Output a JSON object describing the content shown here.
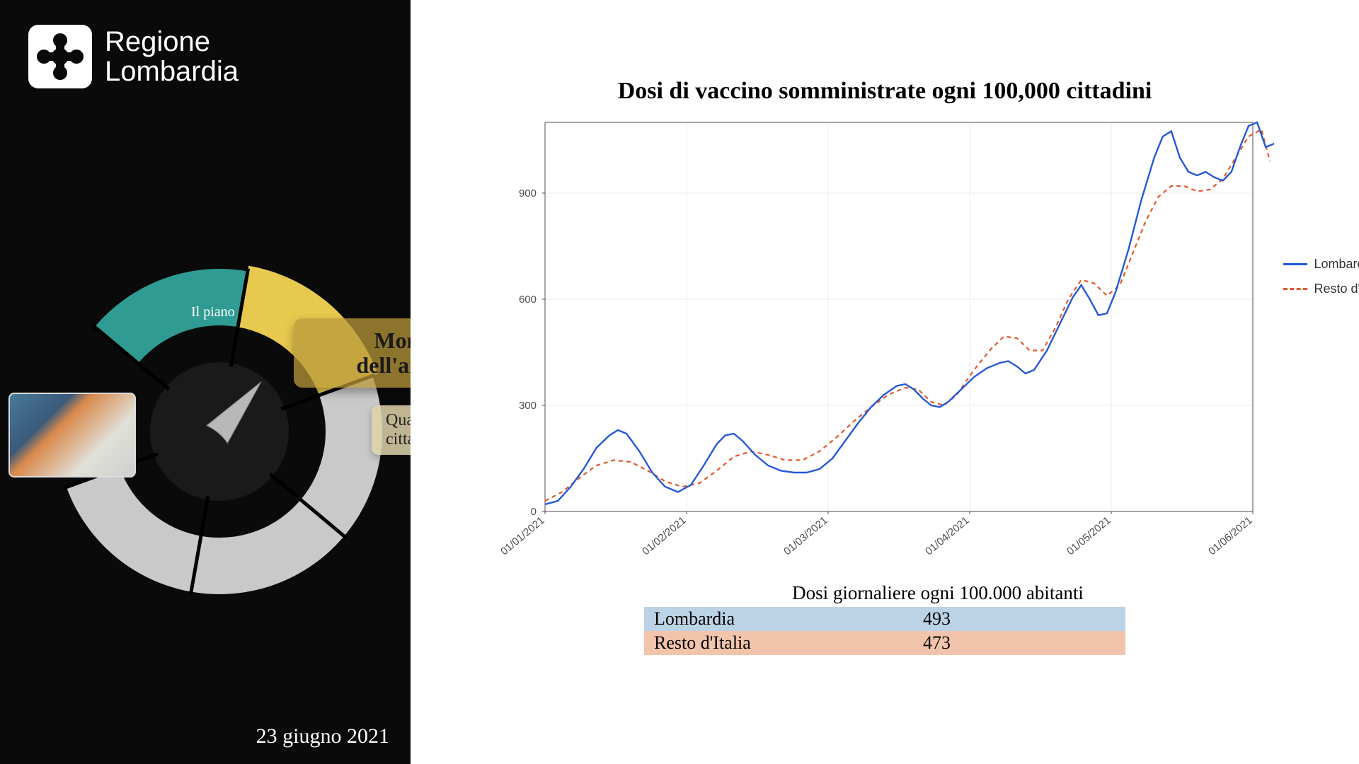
{
  "brand": {
    "line1": "Regione",
    "line2": "Lombardia"
  },
  "date_label": "23 giugno 2021",
  "wheel": {
    "segment_active_label": "Il piano",
    "callout_main_line1": "Monitoraggio",
    "callout_main_line2": "dell'andamento",
    "callout_sub": "Quanti cittadini?",
    "colors": {
      "active_segment": "#2f9b92",
      "highlight_segment": "#e8c94f",
      "inactive_segment": "#c9c9c9",
      "inner_ring": "#1a1a1a",
      "pointer": "#b8b8b8",
      "divider": "#000000"
    }
  },
  "chart": {
    "type": "line",
    "title": "Dosi di vaccino somministrate ogni 100,000 cittadini",
    "plot_background": "#ffffff",
    "panel_border": "#4d4d4d",
    "grid_color": "#ebebeb",
    "axis_text_color": "#4d4d4d",
    "axis_fontsize": 15,
    "ylim": [
      0,
      1100
    ],
    "yticks": [
      0,
      300,
      600,
      900
    ],
    "xticks": [
      "01/01/2021",
      "01/02/2021",
      "01/03/2021",
      "01/04/2021",
      "01/05/2021",
      "01/06/2021"
    ],
    "x_domain": [
      0,
      165
    ],
    "legend": [
      {
        "label": "Lombardia",
        "color": "#2559d6",
        "dash": "solid"
      },
      {
        "label": "Resto d'Italia",
        "color": "#e05a2b",
        "dash": "4 4"
      }
    ],
    "series": {
      "lombardia": {
        "color": "#2559d6",
        "width": 2.4,
        "dash": "none",
        "points": [
          [
            0,
            20
          ],
          [
            3,
            30
          ],
          [
            6,
            70
          ],
          [
            9,
            120
          ],
          [
            12,
            180
          ],
          [
            15,
            215
          ],
          [
            17,
            230
          ],
          [
            19,
            220
          ],
          [
            22,
            170
          ],
          [
            25,
            110
          ],
          [
            28,
            70
          ],
          [
            31,
            55
          ],
          [
            34,
            75
          ],
          [
            37,
            130
          ],
          [
            40,
            190
          ],
          [
            42,
            215
          ],
          [
            44,
            220
          ],
          [
            46,
            200
          ],
          [
            49,
            160
          ],
          [
            52,
            130
          ],
          [
            55,
            115
          ],
          [
            58,
            110
          ],
          [
            61,
            110
          ],
          [
            64,
            120
          ],
          [
            67,
            150
          ],
          [
            70,
            200
          ],
          [
            73,
            250
          ],
          [
            76,
            295
          ],
          [
            79,
            330
          ],
          [
            82,
            355
          ],
          [
            84,
            360
          ],
          [
            86,
            345
          ],
          [
            88,
            320
          ],
          [
            90,
            300
          ],
          [
            92,
            295
          ],
          [
            94,
            310
          ],
          [
            97,
            345
          ],
          [
            100,
            380
          ],
          [
            103,
            405
          ],
          [
            106,
            420
          ],
          [
            108,
            425
          ],
          [
            110,
            410
          ],
          [
            112,
            390
          ],
          [
            114,
            400
          ],
          [
            117,
            455
          ],
          [
            120,
            530
          ],
          [
            123,
            605
          ],
          [
            125,
            640
          ],
          [
            127,
            600
          ],
          [
            129,
            555
          ],
          [
            131,
            560
          ],
          [
            133,
            620
          ],
          [
            136,
            740
          ],
          [
            139,
            880
          ],
          [
            142,
            1000
          ],
          [
            144,
            1060
          ],
          [
            146,
            1075
          ],
          [
            148,
            1000
          ],
          [
            150,
            960
          ],
          [
            152,
            950
          ],
          [
            154,
            960
          ],
          [
            156,
            945
          ],
          [
            158,
            935
          ],
          [
            160,
            960
          ],
          [
            162,
            1030
          ],
          [
            164,
            1090
          ],
          [
            166,
            1100
          ],
          [
            168,
            1030
          ],
          [
            170,
            1040
          ]
        ]
      },
      "resto": {
        "color": "#e05a2b",
        "width": 2.2,
        "dash": "6 5",
        "points": [
          [
            0,
            30
          ],
          [
            4,
            55
          ],
          [
            8,
            95
          ],
          [
            12,
            130
          ],
          [
            16,
            145
          ],
          [
            20,
            140
          ],
          [
            24,
            115
          ],
          [
            28,
            85
          ],
          [
            32,
            70
          ],
          [
            36,
            80
          ],
          [
            40,
            115
          ],
          [
            44,
            155
          ],
          [
            48,
            170
          ],
          [
            52,
            160
          ],
          [
            56,
            145
          ],
          [
            60,
            145
          ],
          [
            64,
            170
          ],
          [
            68,
            210
          ],
          [
            72,
            255
          ],
          [
            76,
            295
          ],
          [
            80,
            330
          ],
          [
            84,
            350
          ],
          [
            87,
            345
          ],
          [
            90,
            310
          ],
          [
            93,
            300
          ],
          [
            96,
            330
          ],
          [
            100,
            400
          ],
          [
            104,
            460
          ],
          [
            107,
            495
          ],
          [
            110,
            490
          ],
          [
            113,
            455
          ],
          [
            116,
            455
          ],
          [
            119,
            520
          ],
          [
            122,
            600
          ],
          [
            125,
            655
          ],
          [
            128,
            645
          ],
          [
            131,
            610
          ],
          [
            134,
            640
          ],
          [
            137,
            730
          ],
          [
            140,
            820
          ],
          [
            143,
            890
          ],
          [
            146,
            920
          ],
          [
            149,
            920
          ],
          [
            152,
            905
          ],
          [
            155,
            910
          ],
          [
            158,
            940
          ],
          [
            161,
            1000
          ],
          [
            164,
            1060
          ],
          [
            167,
            1080
          ],
          [
            169,
            990
          ]
        ]
      }
    }
  },
  "table": {
    "title": "Dosi giornaliere ogni 100.000 abitanti",
    "rows": [
      {
        "label": "Lombardia",
        "value": "493",
        "bg": "#bcd3e6"
      },
      {
        "label": "Resto d'Italia",
        "value": "473",
        "bg": "#f2c4ac"
      }
    ]
  }
}
